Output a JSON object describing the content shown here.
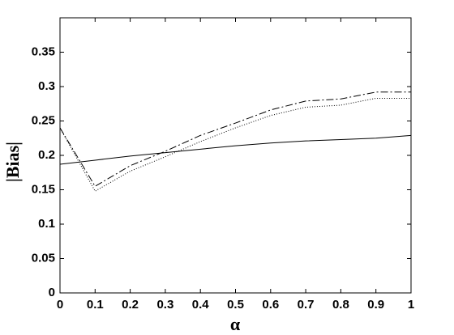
{
  "chart_data": {
    "type": "line",
    "xlabel": "α",
    "ylabel": "|Bias|",
    "x": [
      0,
      0.1,
      0.2,
      0.3,
      0.4,
      0.5,
      0.6,
      0.7,
      0.8,
      0.9,
      1
    ],
    "series": [
      {
        "color": "#000000",
        "dash": "solid",
        "values": [
          0.187,
          0.193,
          0.199,
          0.204,
          0.209,
          0.214,
          0.218,
          0.221,
          0.223,
          0.225,
          0.229
        ]
      },
      {
        "color": "#000000",
        "dash": "dashdot",
        "values": [
          0.24,
          0.155,
          0.185,
          0.206,
          0.229,
          0.247,
          0.266,
          0.279,
          0.282,
          0.292,
          0.292
        ]
      },
      {
        "color": "#000000",
        "dash": "dotted",
        "values": [
          0.24,
          0.148,
          0.177,
          0.198,
          0.22,
          0.24,
          0.258,
          0.27,
          0.273,
          0.283,
          0.283
        ]
      }
    ],
    "xlim": [
      0,
      1
    ],
    "xticks": [
      0,
      0.1,
      0.2,
      0.3,
      0.4,
      0.5,
      0.6,
      0.7,
      0.8,
      0.9,
      1
    ],
    "ylim": [
      0,
      0.4
    ],
    "yticks": [
      0,
      0.05,
      0.1,
      0.15,
      0.2,
      0.25,
      0.3,
      0.35
    ],
    "grid": false
  }
}
